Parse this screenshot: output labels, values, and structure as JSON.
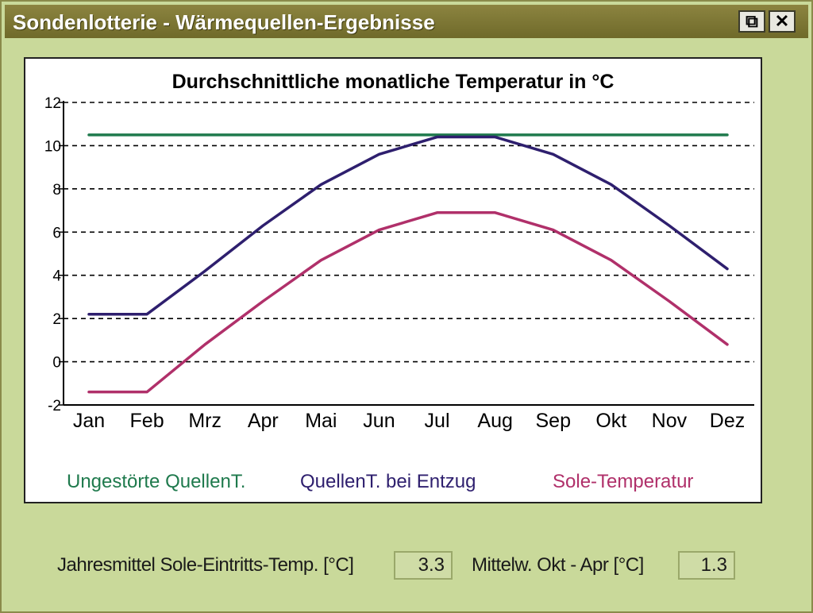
{
  "window": {
    "title": "Sondenlotterie - Wärmequellen-Ergebnisse",
    "restore_label": "⧉",
    "close_label": "✕"
  },
  "chart_data": {
    "type": "line",
    "title": "Durchschnittliche monatliche Temperatur in °C",
    "categories": [
      "Jan",
      "Feb",
      "Mrz",
      "Apr",
      "Mai",
      "Jun",
      "Jul",
      "Aug",
      "Sep",
      "Okt",
      "Nov",
      "Dez"
    ],
    "yticks": [
      "12",
      "10",
      "8",
      "6",
      "4",
      "2",
      "0",
      "-2"
    ],
    "ylim": [
      -2,
      12
    ],
    "grid": true,
    "legend_position": "bottom",
    "series": [
      {
        "name": "Ungestörte QuellenT.",
        "color": "#1f7a4d",
        "values": [
          10.5,
          10.5,
          10.5,
          10.5,
          10.5,
          10.5,
          10.5,
          10.5,
          10.5,
          10.5,
          10.5,
          10.5
        ]
      },
      {
        "name": "QuellenT. bei Entzug",
        "color": "#2e1f6e",
        "values": [
          2.2,
          2.2,
          4.2,
          6.3,
          8.2,
          9.6,
          10.4,
          10.4,
          9.6,
          8.2,
          6.3,
          4.3
        ]
      },
      {
        "name": "Sole-Temperatur",
        "color": "#b0306a",
        "values": [
          -1.4,
          -1.4,
          0.8,
          2.8,
          4.7,
          6.1,
          6.9,
          6.9,
          6.1,
          4.7,
          2.8,
          0.8
        ]
      }
    ]
  },
  "status": {
    "annual_label": "Jahresmittel Sole-Eintritts-Temp. [°C]",
    "annual_value": "3.3",
    "winter_label": "Mittelw. Okt - Apr [°C]",
    "winter_value": "1.3"
  }
}
